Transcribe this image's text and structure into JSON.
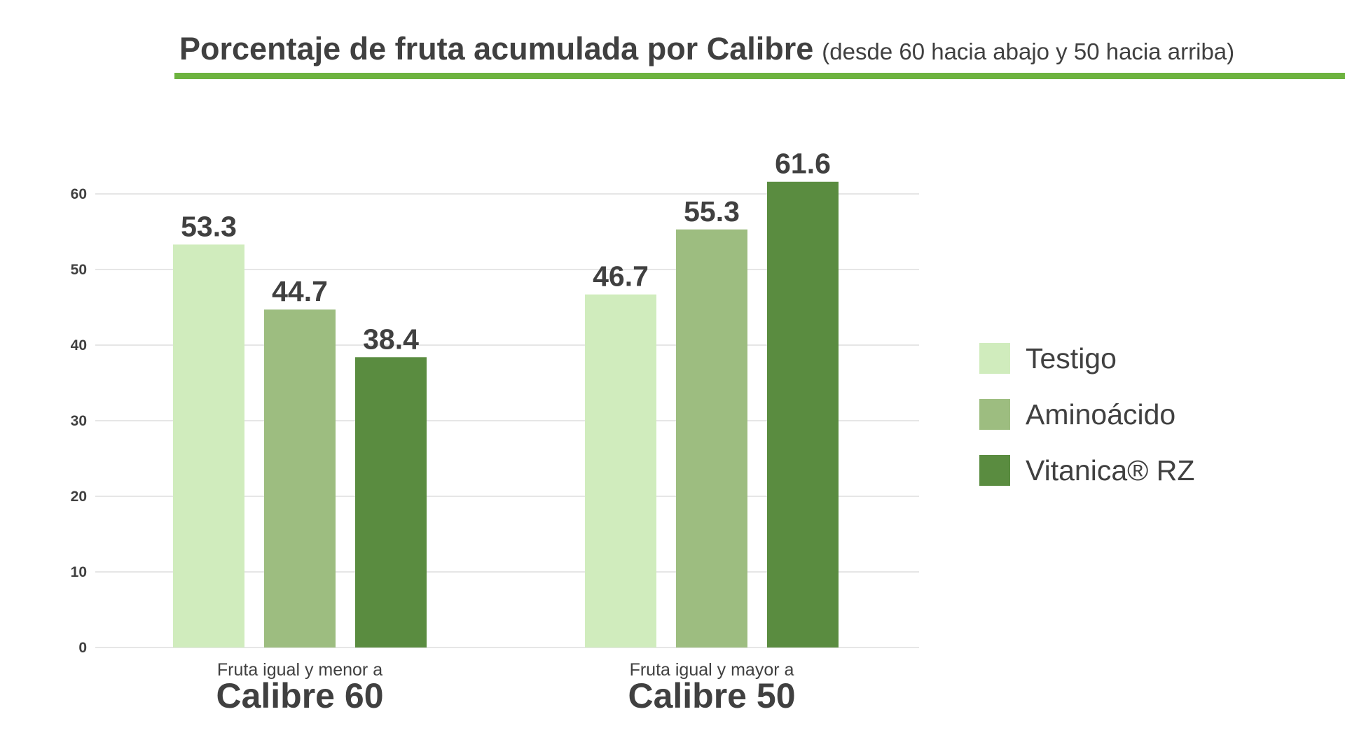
{
  "title": {
    "main": "Porcentaje de fruta acumulada por Calibre",
    "sub": "(desde 60 hacia abajo y 50 hacia arriba)"
  },
  "colors": {
    "title_rule": "#6db33f",
    "text": "#404040",
    "grid": "#e6e6e6"
  },
  "chart_data": {
    "type": "bar",
    "categories": [
      {
        "top": "Fruta igual y menor a",
        "bottom": "Calibre 60"
      },
      {
        "top": "Fruta igual y mayor a",
        "bottom": "Calibre 50"
      }
    ],
    "series": [
      {
        "name": "Testigo",
        "color": "#d0ecbd",
        "values": [
          53.3,
          46.7
        ]
      },
      {
        "name": "Aminoácido",
        "color": "#9dbd80",
        "values": [
          44.7,
          55.3
        ]
      },
      {
        "name": "Vitanica® RZ",
        "color": "#5a8c40",
        "values": [
          38.4,
          61.6
        ]
      }
    ],
    "yticks": [
      0,
      10,
      20,
      30,
      40,
      50,
      60
    ],
    "ylim": [
      0,
      60
    ],
    "grid": true,
    "legend_position": "right",
    "data_labels": [
      "53.3",
      "44.7",
      "38.4",
      "46.7",
      "55.3",
      "61.6"
    ]
  }
}
